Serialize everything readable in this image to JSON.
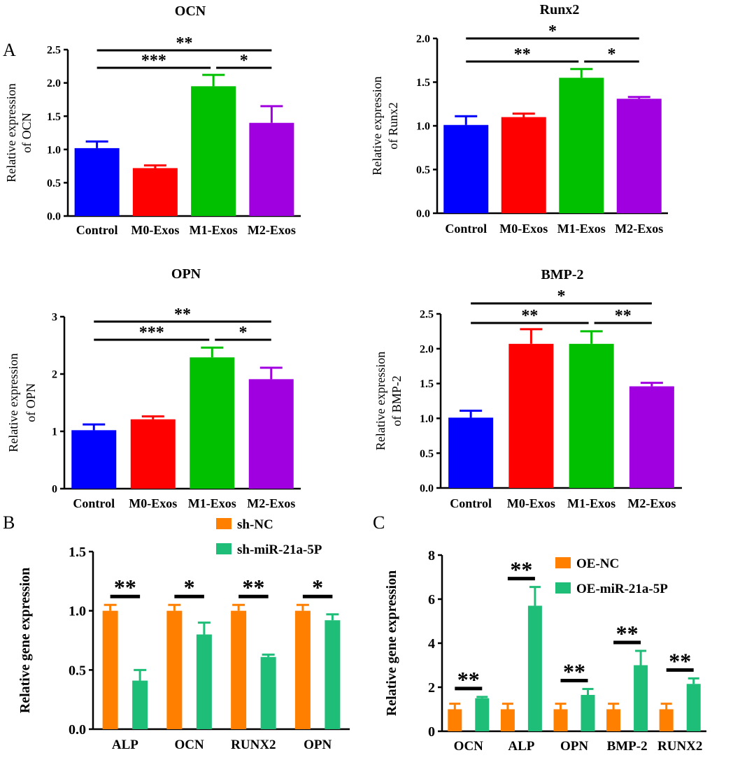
{
  "panel_labels": {
    "a": "A",
    "b": "B",
    "c": "C"
  },
  "chart_data": [
    {
      "id": "ocn",
      "type": "bar",
      "title": "OCN",
      "ylabel": [
        "Relative expression",
        "of OCN"
      ],
      "categories": [
        "Control",
        "M0-Exos",
        "M1-Exos",
        "M2-Exos"
      ],
      "values": [
        1.02,
        0.72,
        1.95,
        1.4
      ],
      "errors": [
        0.1,
        0.04,
        0.17,
        0.25
      ],
      "colors": [
        "#0000ff",
        "#ff0000",
        "#00c000",
        "#a000e0"
      ],
      "ylim": [
        0,
        2.5
      ],
      "yticks": [
        "0.0",
        "0.5",
        "1.0",
        "1.5",
        "2.0",
        "2.5"
      ],
      "significance": [
        {
          "from": 0,
          "to": 3,
          "label": "**"
        },
        {
          "from": 0,
          "to": 2,
          "label": "***"
        },
        {
          "from": 2,
          "to": 3,
          "label": "*"
        }
      ]
    },
    {
      "id": "runx2",
      "type": "bar",
      "title": "Runx2",
      "ylabel": [
        "Relative expression",
        "of Runx2"
      ],
      "categories": [
        "Control",
        "M0-Exos",
        "M1-Exos",
        "M2-Exos"
      ],
      "values": [
        1.01,
        1.1,
        1.55,
        1.31
      ],
      "errors": [
        0.1,
        0.04,
        0.1,
        0.02
      ],
      "colors": [
        "#0000ff",
        "#ff0000",
        "#00c000",
        "#a000e0"
      ],
      "ylim": [
        0,
        2.0
      ],
      "yticks": [
        "0.0",
        "0.5",
        "1.0",
        "1.5",
        "2.0"
      ],
      "significance": [
        {
          "from": 0,
          "to": 3,
          "label": "*"
        },
        {
          "from": 0,
          "to": 2,
          "label": "**"
        },
        {
          "from": 2,
          "to": 3,
          "label": "*"
        }
      ]
    },
    {
      "id": "opn",
      "type": "bar",
      "title": "OPN",
      "ylabel": [
        "Relative expression",
        "of OPN"
      ],
      "categories": [
        "Control",
        "M0-Exos",
        "M1-Exos",
        "M2-Exos"
      ],
      "values": [
        1.02,
        1.21,
        2.29,
        1.91
      ],
      "errors": [
        0.1,
        0.05,
        0.17,
        0.2
      ],
      "colors": [
        "#0000ff",
        "#ff0000",
        "#00c000",
        "#a000e0"
      ],
      "ylim": [
        0,
        3
      ],
      "yticks": [
        "0",
        "1",
        "2",
        "3"
      ],
      "significance": [
        {
          "from": 0,
          "to": 3,
          "label": "**"
        },
        {
          "from": 0,
          "to": 2,
          "label": "***"
        },
        {
          "from": 2,
          "to": 3,
          "label": "*"
        }
      ]
    },
    {
      "id": "bmp2",
      "type": "bar",
      "title": "BMP-2",
      "ylabel": [
        "Relative expression",
        "of BMP-2"
      ],
      "categories": [
        "Control",
        "M0-Exos",
        "M1-Exos",
        "M2-Exos"
      ],
      "values": [
        1.01,
        2.07,
        2.07,
        1.46
      ],
      "errors": [
        0.1,
        0.21,
        0.18,
        0.05
      ],
      "colors": [
        "#0000ff",
        "#ff0000",
        "#00c000",
        "#a000e0"
      ],
      "ylim": [
        0,
        2.5
      ],
      "yticks": [
        "0.0",
        "0.5",
        "1.0",
        "1.5",
        "2.0",
        "2.5"
      ],
      "significance": [
        {
          "from": 0,
          "to": 3,
          "label": "*"
        },
        {
          "from": 0,
          "to": 2,
          "label": "**"
        },
        {
          "from": 2,
          "to": 3,
          "label": "**"
        }
      ]
    },
    {
      "id": "panel-b",
      "type": "bar",
      "title": "",
      "ylabel": [
        "Relative gene expression"
      ],
      "categories": [
        "ALP",
        "OCN",
        "RUNX2",
        "OPN"
      ],
      "series": [
        {
          "name": "sh-NC",
          "color": "#ff8000",
          "values": [
            1.0,
            1.0,
            1.0,
            1.0
          ],
          "errors": [
            0.05,
            0.05,
            0.05,
            0.05
          ]
        },
        {
          "name": "sh-miR-21a-5P",
          "color": "#1ebe78",
          "values": [
            0.41,
            0.8,
            0.61,
            0.92
          ],
          "errors": [
            0.09,
            0.1,
            0.02,
            0.05
          ]
        }
      ],
      "ylim": [
        0,
        1.5
      ],
      "yticks": [
        "0.0",
        "0.5",
        "1.0",
        "1.5"
      ],
      "significance": [
        "**",
        "*",
        "**",
        "*"
      ],
      "legend": "top-right"
    },
    {
      "id": "panel-c",
      "type": "bar",
      "title": "",
      "ylabel": [
        "Relative gene expression"
      ],
      "categories": [
        "OCN",
        "ALP",
        "OPN",
        "BMP-2",
        "RUNX2"
      ],
      "series": [
        {
          "name": "OE-NC",
          "color": "#ff8000",
          "values": [
            1.0,
            1.0,
            1.0,
            1.0,
            1.0
          ],
          "errors": [
            0.25,
            0.25,
            0.25,
            0.25,
            0.25
          ]
        },
        {
          "name": "OE-miR-21a-5P",
          "color": "#1ebe78",
          "values": [
            1.5,
            5.7,
            1.65,
            3.0,
            2.15
          ],
          "errors": [
            0.06,
            0.85,
            0.27,
            0.65,
            0.25
          ]
        }
      ],
      "ylim": [
        0,
        8
      ],
      "yticks": [
        "0",
        "2",
        "4",
        "6",
        "8"
      ],
      "significance": [
        "**",
        "**",
        "**",
        "**",
        "**"
      ],
      "legend": "top-right"
    }
  ]
}
